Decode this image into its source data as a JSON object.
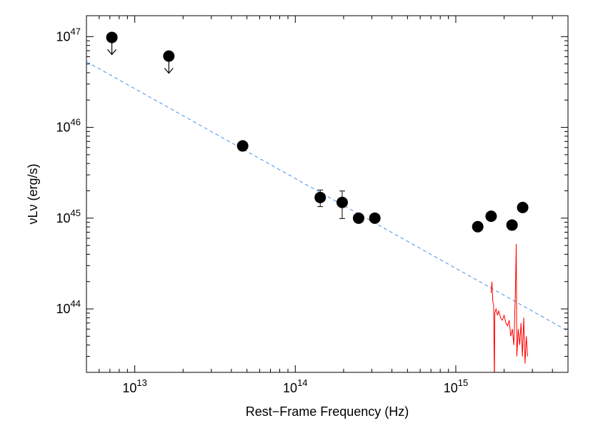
{
  "chart_data": {
    "type": "scatter",
    "xlabel": "Rest−Frame Frequency (Hz)",
    "ylabel": "νLν (erg/s)",
    "xscale": "log",
    "yscale": "log",
    "xlim": [
      5000000000000.0,
      5000000000000000.0
    ],
    "ylim": [
      2e+43,
      1.7e+47
    ],
    "xticks": [
      {
        "value": 10000000000000.0,
        "label": "10^13"
      },
      {
        "value": 100000000000000.0,
        "label": "10^14"
      },
      {
        "value": 1000000000000000.0,
        "label": "10^15"
      }
    ],
    "yticks": [
      {
        "value": 1e+44,
        "label": "10^44"
      },
      {
        "value": 1e+45,
        "label": "10^45"
      },
      {
        "value": 1e+46,
        "label": "10^46"
      },
      {
        "value": 1e+47,
        "label": "10^47"
      }
    ],
    "series": [
      {
        "kind": "points",
        "color": "#000000",
        "x": [
          7200000000000.0,
          16300000000000.0,
          47000000000000.0,
          143000000000000.0,
          196000000000000.0,
          248000000000000.0,
          313000000000000.0,
          1370000000000000.0,
          1660000000000000.0,
          2240000000000000.0,
          2610000000000000.0
        ],
        "values": [
          9.8e+46,
          6.1e+46,
          6.25e+45,
          1.69e+45,
          1.49e+45,
          1e+45,
          1e+45,
          8.05e+44,
          1.05e+45,
          8.4e+44,
          1.31e+45
        ],
        "errors": [
          null,
          null,
          null,
          3.5e+44,
          5e+44,
          null,
          null,
          6e+43,
          null,
          1e+44,
          null
        ],
        "upper_limit": [
          true,
          true,
          false,
          false,
          false,
          false,
          false,
          false,
          false,
          false,
          false
        ]
      },
      {
        "kind": "dashed",
        "color": "#4a90e2",
        "x": [
          5000000000000.0,
          5000000000000000.0
        ],
        "values": [
          5.3e+46,
          5.7e+43
        ]
      },
      {
        "kind": "spectrum",
        "color": "#ff0000",
        "x": [
          1660000000000000.0,
          1680000000000000.0,
          1700000000000000.0,
          1720000000000000.0,
          1740000000000000.0,
          1750000000000000.0,
          1780000000000000.0,
          1820000000000000.0,
          1850000000000000.0,
          1900000000000000.0,
          1950000000000000.0,
          2000000000000000.0,
          2050000000000000.0,
          2100000000000000.0,
          2150000000000000.0,
          2200000000000000.0,
          2250000000000000.0,
          2300000000000000.0,
          2350000000000000.0,
          2380000000000000.0,
          2400000000000000.0,
          2450000000000000.0,
          2500000000000000.0,
          2550000000000000.0,
          2600000000000000.0,
          2650000000000000.0,
          2700000000000000.0,
          2750000000000000.0,
          2800000000000000.0
        ],
        "values": [
          1.5e+44,
          2e+44,
          1.2e+44,
          1.1e+44,
          1.5e+43,
          9e+43,
          1e+44,
          8.5e+43,
          9.5e+43,
          8e+43,
          7.5e+43,
          8.5e+43,
          7e+43,
          6.5e+43,
          7.5e+43,
          5e+43,
          6e+43,
          4e+43,
          1.5e+44,
          5.2e+44,
          3e+43,
          6e+43,
          4e+43,
          7e+43,
          3e+43,
          8e+43,
          2.5e+43,
          5e+43,
          3e+43
        ]
      }
    ]
  }
}
